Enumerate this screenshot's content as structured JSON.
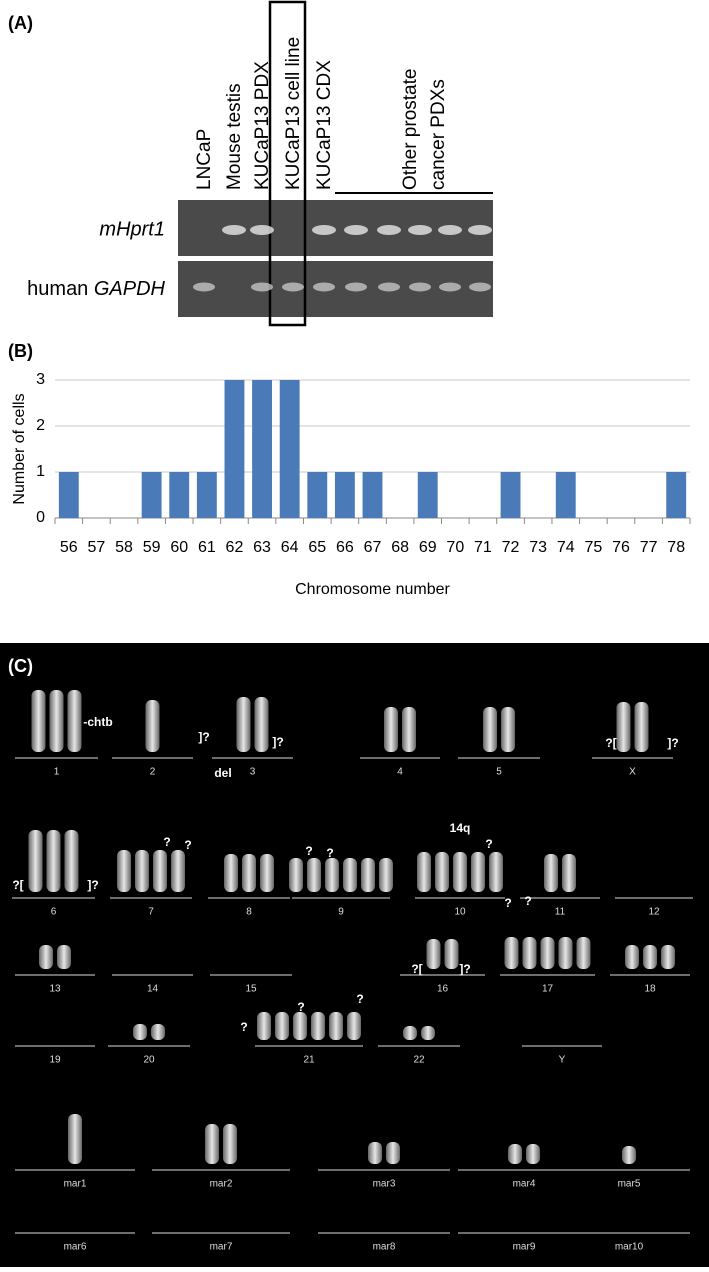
{
  "panel_a": {
    "label": "(A)",
    "lanes": [
      "LNCaP",
      "Mouse testis",
      "KUCaP13 PDX",
      "KUCaP13 cell line",
      "KUCaP13 CDX"
    ],
    "group": [
      "Other prostate",
      "cancer PDXs"
    ],
    "rows": {
      "mhprt1": "mHprt1",
      "human": "human",
      "gapdh": "GAPDH"
    }
  },
  "chart_data": {
    "type": "bar",
    "label": "(B)",
    "categories": [
      "56",
      "57",
      "58",
      "59",
      "60",
      "61",
      "62",
      "63",
      "64",
      "65",
      "66",
      "67",
      "68",
      "69",
      "70",
      "71",
      "72",
      "73",
      "74",
      "75",
      "76",
      "77",
      "78"
    ],
    "values": [
      1,
      0,
      0,
      1,
      1,
      1,
      3,
      3,
      3,
      1,
      1,
      1,
      0,
      1,
      0,
      0,
      1,
      0,
      1,
      0,
      0,
      0,
      1
    ],
    "color": "#4a7ab8",
    "ylim": [
      0,
      3
    ],
    "yticks": [
      0,
      1,
      2,
      3
    ],
    "grid": true,
    "y_label": "Number of cells",
    "x_label": "Chromosome number"
  },
  "panel_c": {
    "label": "(C)",
    "chromosomes": [
      "1",
      "2",
      "3",
      "4",
      "5",
      "X",
      "6",
      "7",
      "8",
      "9",
      "10",
      "11",
      "12",
      "13",
      "14",
      "15",
      "16",
      "17",
      "18",
      "19",
      "20",
      "21",
      "22",
      "Y",
      "mar1",
      "mar2",
      "mar3",
      "mar4",
      "mar5",
      "mar6",
      "mar7",
      "mar8",
      "mar9",
      "mar10"
    ],
    "annotations": [
      "-chtb",
      "]?",
      "]?",
      "del",
      "?[",
      "]?",
      "?[",
      "]?",
      "?",
      "?",
      "?",
      "?",
      "14q",
      "?",
      "?[",
      "]?",
      "?",
      "?",
      "?",
      "?",
      "?"
    ]
  }
}
